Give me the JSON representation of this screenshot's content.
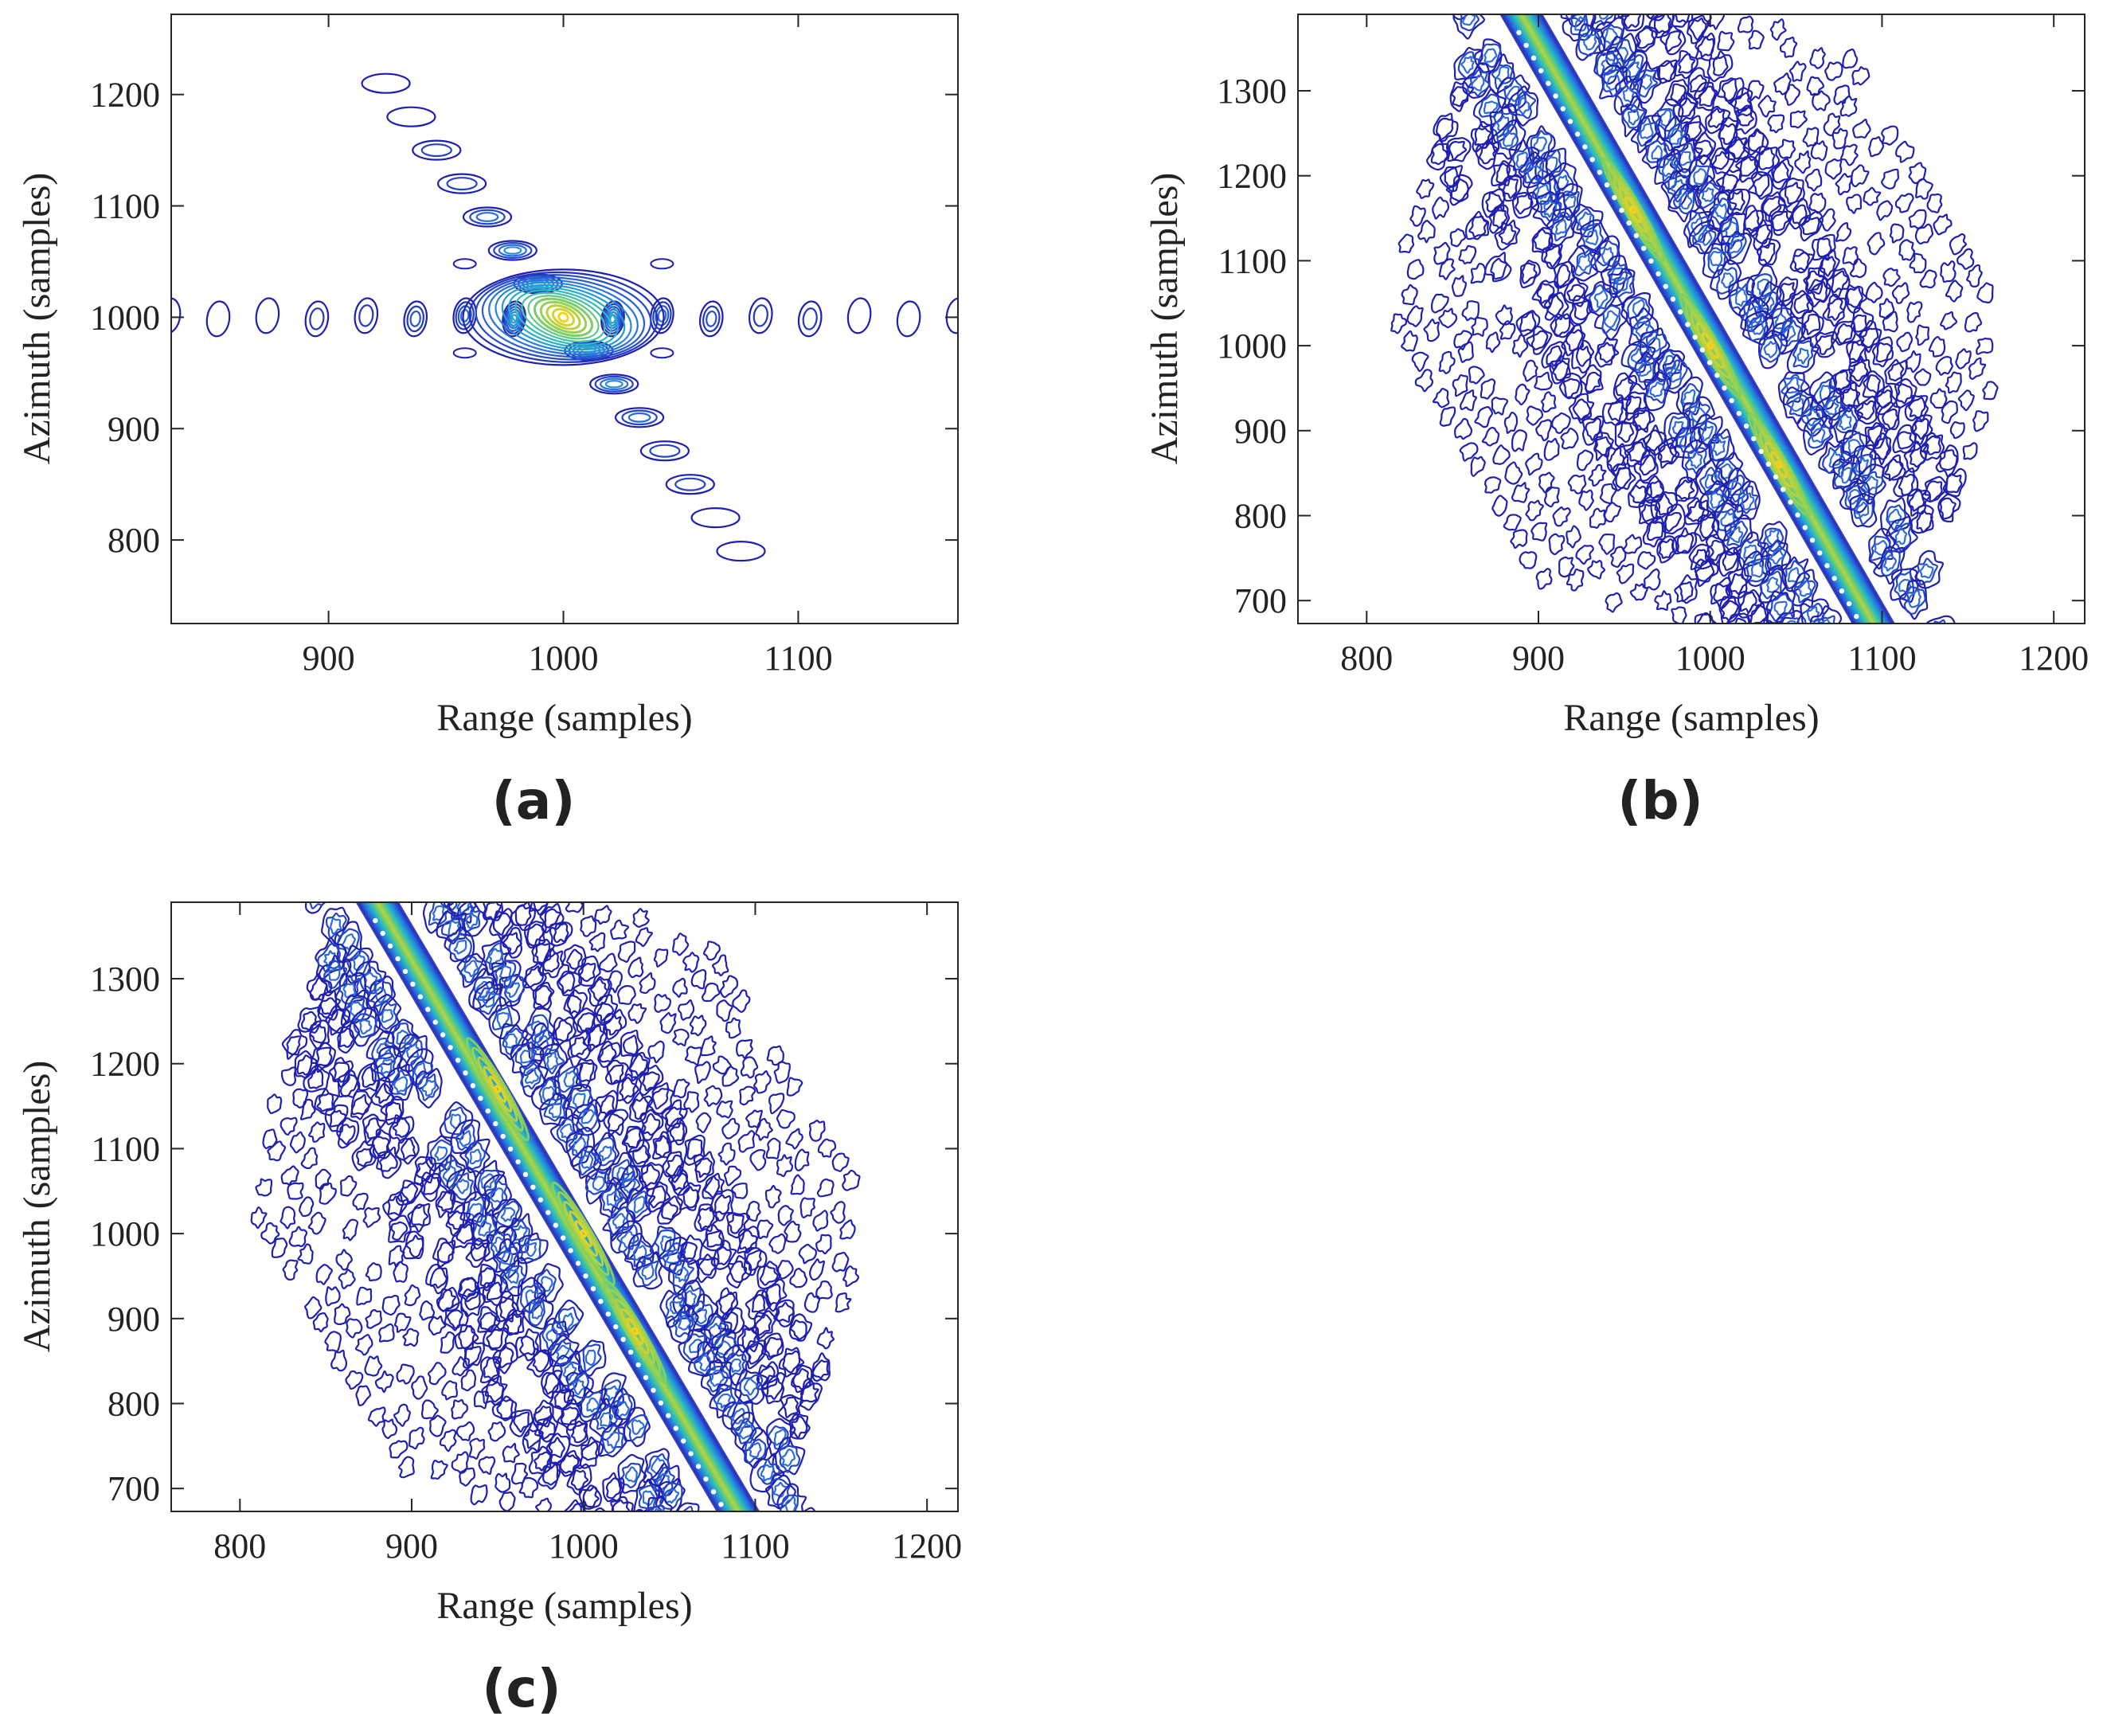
{
  "figure": {
    "colors": {
      "background": "#ffffff",
      "axis": "#262626",
      "contour_low": "#1f1fb0",
      "contour_mid": "#2a6fe0",
      "contour_mid2": "#22b8c8",
      "contour_high": "#7fd060",
      "contour_peak": "#f5d21e"
    }
  },
  "chart_data": [
    {
      "id": "a",
      "panel_label": "(a)",
      "type": "contour",
      "pattern": "cross",
      "xlabel": "Range (samples)",
      "ylabel": "Azimuth (samples)",
      "xlim": [
        833,
        1168
      ],
      "ylim": [
        725,
        1272
      ],
      "xticks": [
        900,
        1000,
        1100
      ],
      "yticks": [
        800,
        900,
        1000,
        1100,
        1200
      ],
      "xtick_labels": [
        "900",
        "1000",
        "1100"
      ],
      "ytick_labels": [
        "800",
        "900",
        "1000",
        "1100",
        "1200"
      ],
      "peak": {
        "x": 1000,
        "y": 1000
      },
      "range_sidelobe_spacing": 21,
      "azimuth_sidelobe_spacing": 30,
      "azimuth_sidelobe_slope": -0.36
    },
    {
      "id": "b",
      "panel_label": "(b)",
      "type": "contour",
      "pattern": "oblique",
      "xlabel": "Range (samples)",
      "ylabel": "Azimuth (samples)",
      "xlim": [
        760,
        1218
      ],
      "ylim": [
        673,
        1390
      ],
      "xticks": [
        800,
        900,
        1000,
        1100,
        1200
      ],
      "yticks": [
        700,
        800,
        900,
        1000,
        1100,
        1200,
        1300
      ],
      "xtick_labels": [
        "800",
        "900",
        "1000",
        "1100",
        "1200"
      ],
      "ytick_labels": [
        "700",
        "800",
        "900",
        "1000",
        "1100",
        "1200",
        "1300"
      ],
      "ridge": {
        "x1": 890,
        "y1": 1390,
        "x2": 1095,
        "y2": 673
      },
      "peaks": [
        {
          "x": 955,
          "y": 1160
        },
        {
          "x": 1000,
          "y": 1000
        },
        {
          "x": 1040,
          "y": 860
        }
      ]
    },
    {
      "id": "c",
      "panel_label": "(c)",
      "type": "contour",
      "pattern": "oblique",
      "xlabel": "Range (samples)",
      "ylabel": "Azimuth (samples)",
      "xlim": [
        760,
        1218
      ],
      "ylim": [
        673,
        1390
      ],
      "xticks": [
        800,
        900,
        1000,
        1100,
        1200
      ],
      "yticks": [
        700,
        800,
        900,
        1000,
        1100,
        1200,
        1300
      ],
      "xtick_labels": [
        "800",
        "900",
        "1000",
        "1100",
        "1200"
      ],
      "ytick_labels": [
        "700",
        "800",
        "900",
        "1000",
        "1100",
        "1200",
        "1300"
      ],
      "ridge": {
        "x1": 880,
        "y1": 1390,
        "x2": 1090,
        "y2": 673
      },
      "peaks": [
        {
          "x": 950,
          "y": 1170
        },
        {
          "x": 1000,
          "y": 1000
        },
        {
          "x": 1030,
          "y": 885
        }
      ]
    }
  ]
}
